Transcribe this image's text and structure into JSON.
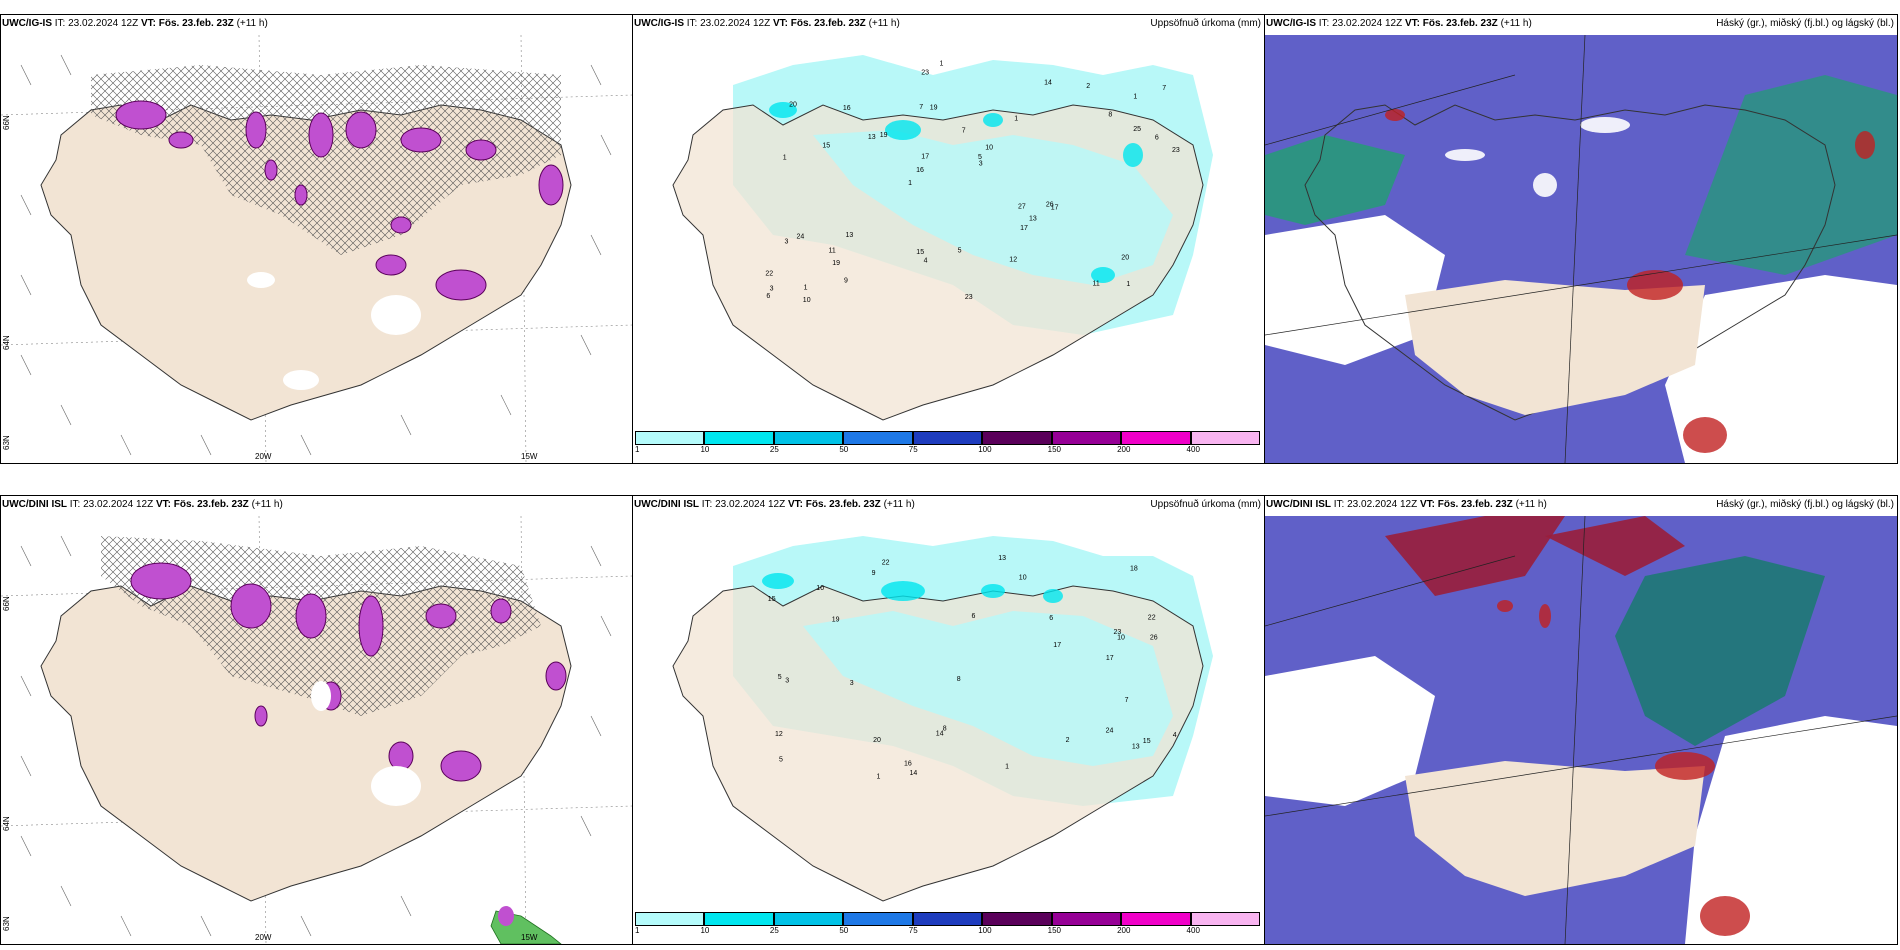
{
  "rows": [
    {
      "model": "UWC/IG-IS",
      "init": "IT: 23.02.2024 12Z",
      "valid_prefix": "VT:",
      "valid": "Fös. 23.feb. 23Z",
      "lead": "(+11 h)",
      "precip_values": [
        "1",
        "1",
        "1",
        "1",
        "1",
        "1",
        "7",
        "7",
        "24",
        "19",
        "22",
        "19",
        "19",
        "10",
        "17",
        "20",
        "23",
        "23",
        "27",
        "25",
        "16",
        "15",
        "17",
        "16",
        "14",
        "13",
        "11",
        "20",
        "26",
        "23",
        "13",
        "15",
        "17",
        "9",
        "6",
        "5",
        "3",
        "4",
        "3",
        "3",
        "8",
        "7",
        "13",
        "12",
        "11",
        "10",
        "6",
        "5",
        "2",
        "1"
      ],
      "wind_labels": {
        "lat1": "66N",
        "lat2": "64N",
        "lat3": "63N",
        "lon1": "20W",
        "lon2": "15W"
      }
    },
    {
      "model": "UWC/DINI ISL",
      "init": "IT: 23.02.2024 12Z",
      "valid_prefix": "VT:",
      "valid": "Fös. 23.feb. 23Z",
      "lead": "(+11 h)",
      "precip_values": [
        "24",
        "22",
        "15",
        "6",
        "5",
        "22",
        "23",
        "20",
        "18",
        "19",
        "26",
        "15",
        "17",
        "14",
        "12",
        "10",
        "13",
        "9",
        "8",
        "10",
        "5",
        "3",
        "1",
        "17",
        "16",
        "14",
        "13",
        "10",
        "6",
        "4",
        "3",
        "2",
        "1",
        "8",
        "7"
      ],
      "wind_labels": {
        "lat1": "66N",
        "lat2": "64N",
        "lat3": "63N",
        "lon1": "20W",
        "lon2": "15W"
      }
    }
  ],
  "precip_title": "Uppsöfnuð úrkoma (mm)",
  "cloud_title": "Háský (gr.), miðský (fj.bl.) og lágský (bl.)",
  "colorbar": {
    "ticks": [
      "1",
      "10",
      "25",
      "50",
      "75",
      "100",
      "150",
      "200",
      "400"
    ],
    "colors": [
      "#b4fbfb",
      "#00e6ef",
      "#00c2e6",
      "#1e78e6",
      "#1e3cbe",
      "#5a005a",
      "#960096",
      "#f000c8",
      "#f8b4f0"
    ]
  },
  "colors": {
    "land": "#f2e4d4",
    "precip_light": "#b8f8f8",
    "cloud_high": "#6060c8",
    "cloud_mid": "#20a070",
    "cloud_low": "#c02020",
    "snow_purple": "#c050d0"
  }
}
